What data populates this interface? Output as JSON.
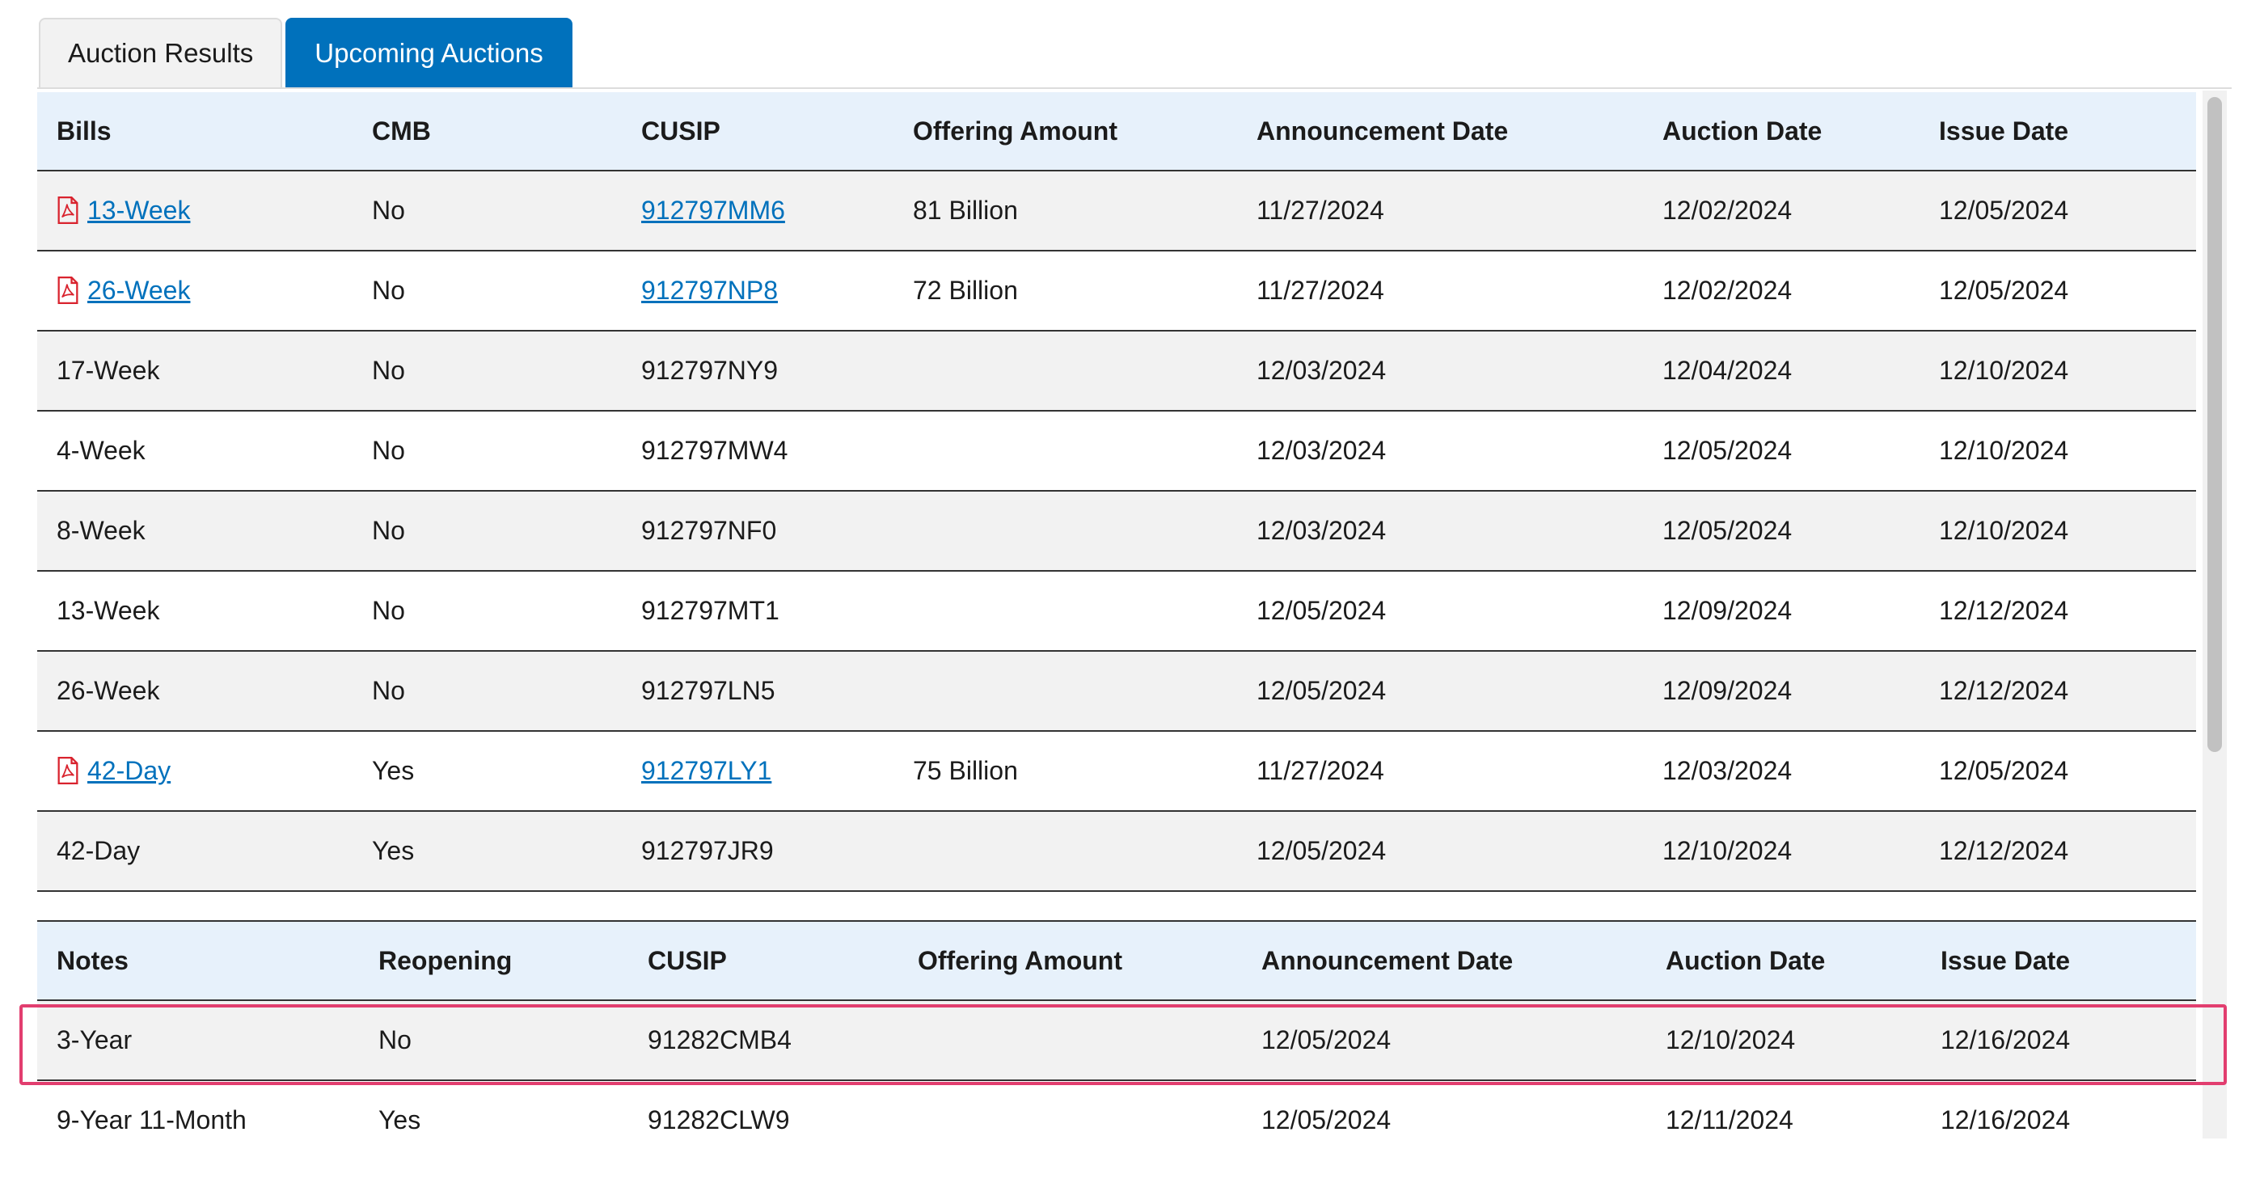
{
  "tabs": [
    {
      "label": "Auction Results",
      "active": false
    },
    {
      "label": "Upcoming Auctions",
      "active": true
    }
  ],
  "colors": {
    "tab_active": "#0071bc",
    "header_bg": "#e7f1fb",
    "row_stripe": "#f2f2f2",
    "link": "#0071bc",
    "pdf_icon": "#d9232e",
    "highlight": "#e23e6f"
  },
  "bills": {
    "headers": [
      "Bills",
      "CMB",
      "CUSIP",
      "Offering Amount",
      "Announcement Date",
      "Auction Date",
      "Issue Date"
    ],
    "rows": [
      {
        "term": "13-Week",
        "cmb": "No",
        "cusip": "912797MM6",
        "offering": "81 Billion",
        "announce": "11/27/2024",
        "auction": "12/02/2024",
        "issue": "12/05/2024",
        "has_pdf": true
      },
      {
        "term": "26-Week",
        "cmb": "No",
        "cusip": "912797NP8",
        "offering": "72 Billion",
        "announce": "11/27/2024",
        "auction": "12/02/2024",
        "issue": "12/05/2024",
        "has_pdf": true
      },
      {
        "term": "17-Week",
        "cmb": "No",
        "cusip": "912797NY9",
        "offering": "",
        "announce": "12/03/2024",
        "auction": "12/04/2024",
        "issue": "12/10/2024",
        "has_pdf": false
      },
      {
        "term": "4-Week",
        "cmb": "No",
        "cusip": "912797MW4",
        "offering": "",
        "announce": "12/03/2024",
        "auction": "12/05/2024",
        "issue": "12/10/2024",
        "has_pdf": false
      },
      {
        "term": "8-Week",
        "cmb": "No",
        "cusip": "912797NF0",
        "offering": "",
        "announce": "12/03/2024",
        "auction": "12/05/2024",
        "issue": "12/10/2024",
        "has_pdf": false
      },
      {
        "term": "13-Week",
        "cmb": "No",
        "cusip": "912797MT1",
        "offering": "",
        "announce": "12/05/2024",
        "auction": "12/09/2024",
        "issue": "12/12/2024",
        "has_pdf": false
      },
      {
        "term": "26-Week",
        "cmb": "No",
        "cusip": "912797LN5",
        "offering": "",
        "announce": "12/05/2024",
        "auction": "12/09/2024",
        "issue": "12/12/2024",
        "has_pdf": false
      },
      {
        "term": "42-Day",
        "cmb": "Yes",
        "cusip": "912797LY1",
        "offering": "75 Billion",
        "announce": "11/27/2024",
        "auction": "12/03/2024",
        "issue": "12/05/2024",
        "has_pdf": true
      },
      {
        "term": "42-Day",
        "cmb": "Yes",
        "cusip": "912797JR9",
        "offering": "",
        "announce": "12/05/2024",
        "auction": "12/10/2024",
        "issue": "12/12/2024",
        "has_pdf": false
      }
    ]
  },
  "notes": {
    "headers": [
      "Notes",
      "Reopening",
      "CUSIP",
      "Offering Amount",
      "Announcement Date",
      "Auction Date",
      "Issue Date"
    ],
    "rows": [
      {
        "term": "3-Year",
        "reopening": "No",
        "cusip": "91282CMB4",
        "offering": "",
        "announce": "12/05/2024",
        "auction": "12/10/2024",
        "issue": "12/16/2024",
        "highlighted": true
      },
      {
        "term": "9-Year 11-Month",
        "reopening": "Yes",
        "cusip": "91282CLW9",
        "offering": "",
        "announce": "12/05/2024",
        "auction": "12/11/2024",
        "issue": "12/16/2024",
        "highlighted": false
      }
    ]
  }
}
